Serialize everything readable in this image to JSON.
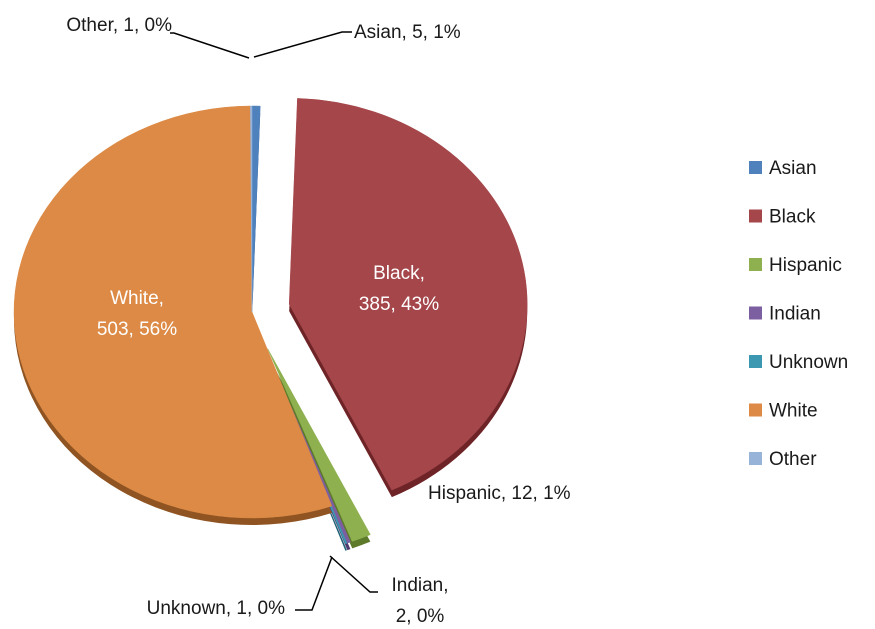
{
  "chart_data": {
    "type": "pie",
    "title": "",
    "legend_position": "right",
    "slices": [
      {
        "name": "Asian",
        "value": 5,
        "percent": "1%",
        "color": "#4F81BD",
        "shade": "#2e5a8a",
        "label": "Asian, 5, 1%"
      },
      {
        "name": "Black",
        "value": 385,
        "percent": "43%",
        "color": "#A4464A",
        "shade": "#6e2427",
        "label_lines": [
          "Black,",
          "385, 43%"
        ]
      },
      {
        "name": "Hispanic",
        "value": 12,
        "percent": "1%",
        "color": "#8EB04F",
        "shade": "#5d7a2a",
        "label": "Hispanic, 12, 1%"
      },
      {
        "name": "Indian",
        "value": 2,
        "percent": "0%",
        "color": "#7C5FA0",
        "shade": "#4f3a6e",
        "label_lines": [
          "Indian,",
          "2, 0%"
        ]
      },
      {
        "name": "Unknown",
        "value": 1,
        "percent": "0%",
        "color": "#3C98B0",
        "shade": "#1f6376",
        "label": "Unknown, 1, 0%"
      },
      {
        "name": "White",
        "value": 503,
        "percent": "56%",
        "color": "#DC8A45",
        "shade": "#8f5422",
        "label_lines": [
          "White,",
          "503, 56%"
        ]
      },
      {
        "name": "Other",
        "value": 1,
        "percent": "0%",
        "color": "#98B3D8",
        "shade": "#6a86ad",
        "label": "Other, 1, 0%"
      }
    ],
    "legend": [
      "Asian",
      "Black",
      "Hispanic",
      "Indian",
      "Unknown",
      "White",
      "Other"
    ]
  }
}
